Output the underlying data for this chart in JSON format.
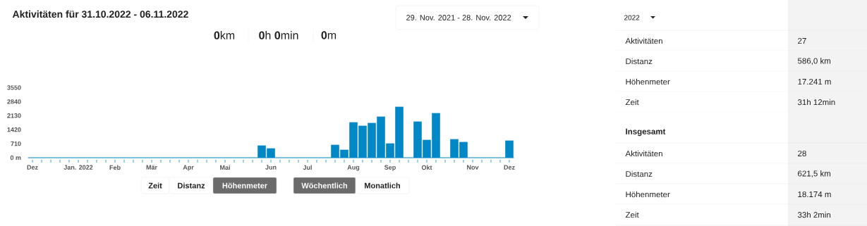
{
  "chart_data": [
    {
      "type": "bar",
      "title": "Aktivitäten für 31.10.2022 - 06.11.2022",
      "categories": [
        "Dez",
        null,
        null,
        null,
        null,
        "Jan. 2022",
        null,
        null,
        null,
        "Feb",
        null,
        null,
        null,
        "Mär",
        null,
        null,
        null,
        "Apr",
        null,
        null,
        null,
        "Mai",
        null,
        null,
        null,
        null,
        "Jun",
        null,
        null,
        null,
        "Jul",
        null,
        null,
        null,
        null,
        "Aug",
        null,
        null,
        null,
        "Sep",
        null,
        null,
        null,
        "Okt",
        null,
        null,
        null,
        null,
        "Nov",
        null,
        null,
        null,
        "Dez"
      ],
      "values": [
        0,
        0,
        0,
        0,
        0,
        0,
        0,
        0,
        0,
        0,
        0,
        0,
        0,
        0,
        0,
        0,
        0,
        0,
        0,
        0,
        0,
        0,
        0,
        0,
        0,
        620,
        475,
        0,
        0,
        0,
        0,
        0,
        0,
        655,
        405,
        1797,
        1620,
        1762,
        2083,
        726,
        2583,
        0,
        1834,
        905,
        2262,
        0,
        941,
        798,
        0,
        0,
        0,
        0,
        870
      ],
      "color": "#0088c6",
      "ylim": [
        0,
        3550
      ],
      "yticks": [
        {
          "value": 0,
          "label": "0 m"
        },
        710,
        1420,
        2130,
        2840,
        3550
      ],
      "annotations": [
        "**0**km",
        "**0**h **0**min",
        "**0**m",
        "29. Nov. 2021 - 28. Nov. 2022",
        "Zeit",
        "Distanz",
        "Höhenmeter",
        "Wöchentlich",
        "Monatlich"
      ]
    },
    {
      "type": "other",
      "annotations": [
        "2022",
        "Aktivitäten",
        "27",
        "Distanz",
        "586,0 km",
        "Höhenmeter",
        "17.241 m",
        "Zeit",
        "31h 12min",
        "**Insgesamt**",
        "Aktivitäten",
        "28",
        "Distanz",
        "621,5 km",
        "Höhenmeter",
        "18.174 m",
        "Zeit",
        "33h 2min"
      ]
    }
  ]
}
